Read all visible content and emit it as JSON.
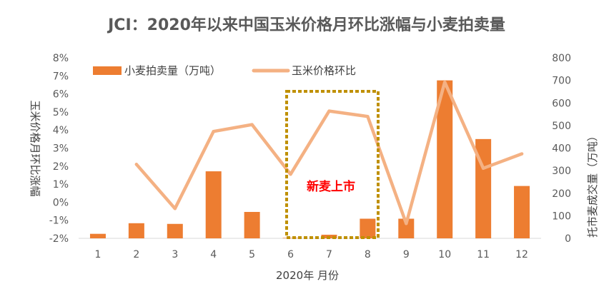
{
  "chart_data": {
    "type": "bar+line",
    "title": "JCI：2020年以来中国玉米价格月环比涨幅与小麦拍卖量",
    "xlabel": "2020年 月份",
    "ylabel_left": "玉米价格月环比涨幅",
    "ylabel_right": "托市麦成交量（万吨）",
    "categories": [
      "1",
      "2",
      "3",
      "4",
      "5",
      "6",
      "7",
      "8",
      "9",
      "10",
      "11",
      "12"
    ],
    "y_left": {
      "min": -0.02,
      "max": 0.08,
      "ticks": [
        "-2%",
        "-1%",
        "0%",
        "1%",
        "2%",
        "3%",
        "4%",
        "5%",
        "6%",
        "7%",
        "8%"
      ]
    },
    "y_right": {
      "min": 0,
      "max": 800,
      "ticks": [
        "0",
        "100",
        "200",
        "300",
        "400",
        "500",
        "600",
        "700",
        "800"
      ]
    },
    "series": [
      {
        "name": "小麦拍卖量（万吨）",
        "type": "bar",
        "axis": "right",
        "color": "#ed7d31",
        "values": [
          20,
          67,
          64,
          297,
          117,
          2,
          16,
          87,
          87,
          700,
          440,
          232
        ]
      },
      {
        "name": "玉米价格环比",
        "type": "line",
        "axis": "left",
        "color": "#f4b183",
        "values": [
          null,
          0.021,
          -0.0035,
          0.0392,
          0.043,
          0.0155,
          0.0505,
          0.0475,
          -0.0118,
          0.0665,
          0.0188,
          0.0268
        ]
      }
    ],
    "annotation": {
      "text": "新麦上市",
      "color": "#ff0000",
      "box_color": "#bf9000",
      "span": [
        "6",
        "8"
      ]
    },
    "legend": "top-left",
    "grid": false
  }
}
